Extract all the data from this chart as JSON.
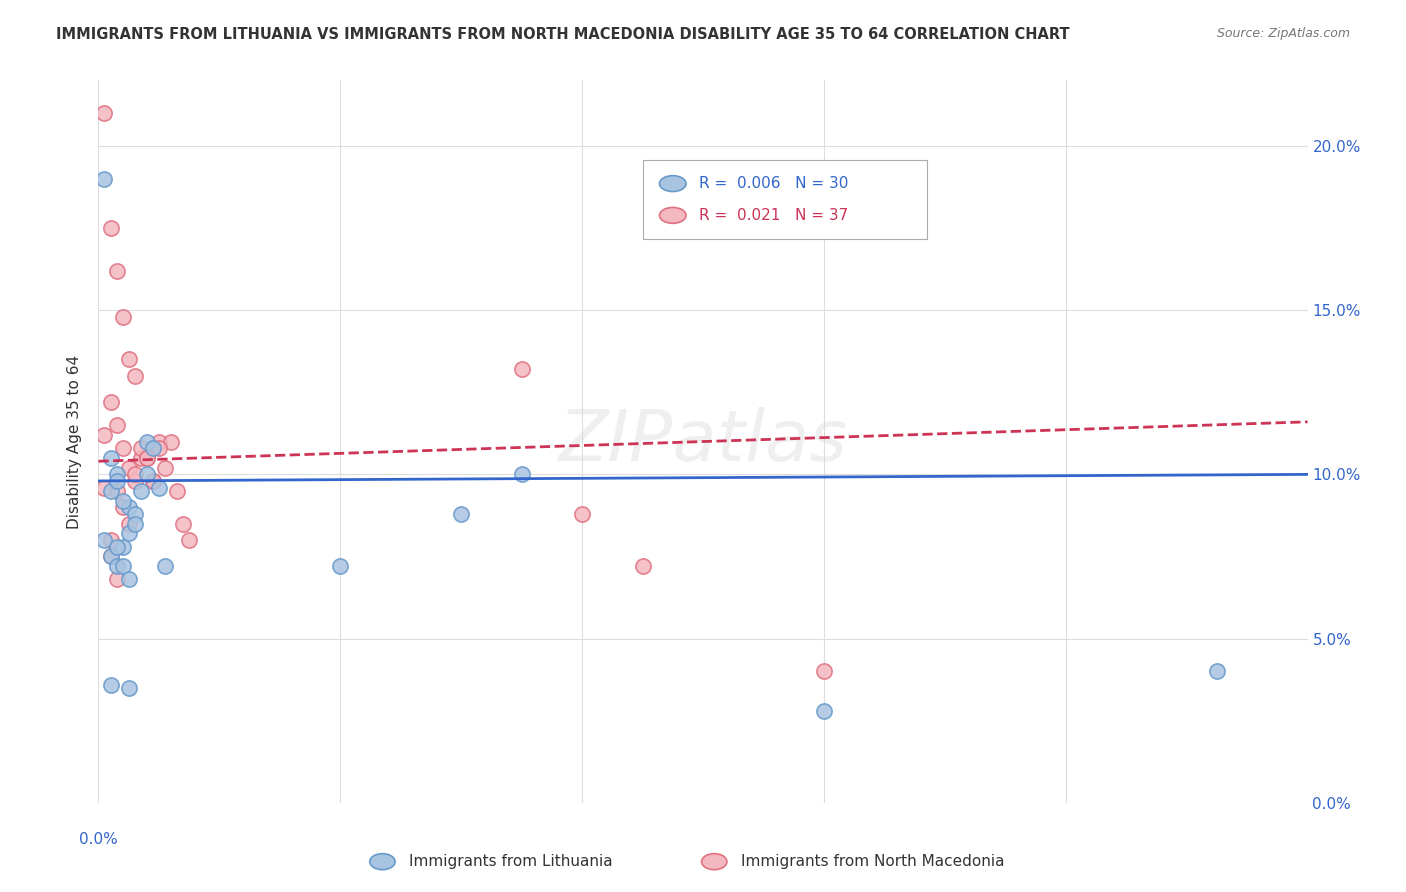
{
  "title": "IMMIGRANTS FROM LITHUANIA VS IMMIGRANTS FROM NORTH MACEDONIA DISABILITY AGE 35 TO 64 CORRELATION CHART",
  "source": "Source: ZipAtlas.com",
  "ylabel": "Disability Age 35 to 64",
  "xlim": [
    0.0,
    0.2
  ],
  "ylim": [
    0.0,
    0.22
  ],
  "xticks": [
    0.0,
    0.04,
    0.08,
    0.12,
    0.16,
    0.2
  ],
  "yticks": [
    0.0,
    0.05,
    0.1,
    0.15,
    0.2
  ],
  "ytick_labels": [
    "0.0%",
    "5.0%",
    "10.0%",
    "15.0%",
    "20.0%"
  ],
  "background_color": "#ffffff",
  "grid_color": "#dddddd",
  "watermark": "ZIPatlas",
  "lithuania_color": "#a8c4e0",
  "lithuania_edge": "#6699cc",
  "macedonia_color": "#f4b8c1",
  "macedonia_edge": "#e07080",
  "legend_r_lithuania": "0.006",
  "legend_n_lithuania": "30",
  "legend_r_macedonia": "0.021",
  "legend_n_macedonia": "37",
  "lithuania_x": [
    0.001,
    0.008,
    0.002,
    0.003,
    0.005,
    0.002,
    0.003,
    0.004,
    0.001,
    0.002,
    0.003,
    0.004,
    0.005,
    0.006,
    0.007,
    0.003,
    0.004,
    0.005,
    0.006,
    0.008,
    0.009,
    0.01,
    0.011,
    0.005,
    0.07,
    0.04,
    0.002,
    0.06,
    0.12,
    0.185
  ],
  "lithuania_y": [
    0.19,
    0.1,
    0.095,
    0.1,
    0.09,
    0.105,
    0.098,
    0.092,
    0.08,
    0.075,
    0.072,
    0.078,
    0.082,
    0.088,
    0.095,
    0.078,
    0.072,
    0.068,
    0.085,
    0.11,
    0.108,
    0.096,
    0.072,
    0.035,
    0.1,
    0.072,
    0.036,
    0.088,
    0.028,
    0.04
  ],
  "macedonia_x": [
    0.001,
    0.002,
    0.003,
    0.004,
    0.005,
    0.006,
    0.002,
    0.003,
    0.004,
    0.005,
    0.006,
    0.007,
    0.003,
    0.004,
    0.005,
    0.006,
    0.007,
    0.008,
    0.009,
    0.01,
    0.011,
    0.012,
    0.013,
    0.014,
    0.015,
    0.07,
    0.001,
    0.002,
    0.003,
    0.008,
    0.009,
    0.01,
    0.12,
    0.001,
    0.002,
    0.09,
    0.08
  ],
  "macedonia_y": [
    0.21,
    0.175,
    0.162,
    0.148,
    0.135,
    0.13,
    0.122,
    0.115,
    0.108,
    0.102,
    0.098,
    0.105,
    0.095,
    0.09,
    0.085,
    0.1,
    0.108,
    0.105,
    0.098,
    0.11,
    0.102,
    0.11,
    0.095,
    0.085,
    0.08,
    0.132,
    0.096,
    0.075,
    0.068,
    0.105,
    0.098,
    0.108,
    0.04,
    0.112,
    0.08,
    0.072,
    0.088
  ],
  "lit_line_x": [
    0.0,
    0.2
  ],
  "lit_line_y": [
    0.098,
    0.1
  ],
  "mac_line_x": [
    0.0,
    0.2
  ],
  "mac_line_y": [
    0.104,
    0.116
  ]
}
